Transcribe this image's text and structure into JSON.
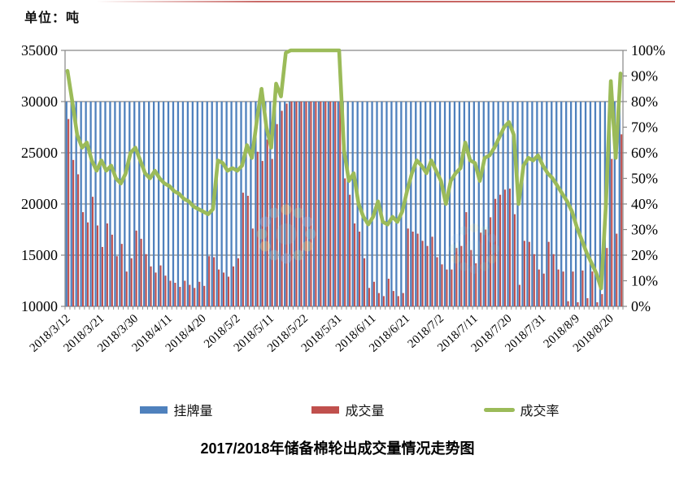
{
  "page": {
    "unit_label": "单位：吨",
    "top_line_color": "#c0504d",
    "background": "#ffffff"
  },
  "legend": {
    "items": [
      {
        "label": "挂牌量",
        "color": "#4f81bd",
        "marker": "bar"
      },
      {
        "label": "成交量",
        "color": "#c0504d",
        "marker": "bar"
      },
      {
        "label": "成交率",
        "color": "#9bbb59",
        "marker": "line"
      }
    ]
  },
  "watermark": {
    "colors": [
      "#8fd4e0",
      "#f2dd88",
      "#a8d9b8",
      "#9fc7ee"
    ]
  },
  "chart_data": {
    "type": "combo",
    "title": "2017/2018年储备棉轮出成交量情况走势图",
    "grid": true,
    "legend_position": "bottom",
    "x_tick_every": 7,
    "x_tick_labels": [
      "2018/3/12",
      "2018/3/21",
      "2018/3/30",
      "2018/4/11",
      "2018/4/20",
      "2018/5/2",
      "2018/5/11",
      "2018/5/22",
      "2018/5/31",
      "2018/6/11",
      "2018/6/21",
      "2018/7/2",
      "2018/7/11",
      "2018/7/20",
      "2018/7/31",
      "2018/8/9",
      "2018/8/20"
    ],
    "left_axis": {
      "title": "单位：吨",
      "min": 10000,
      "max": 35000,
      "step": 5000,
      "tick_labels": [
        "35000",
        "30000",
        "25000",
        "20000",
        "15000",
        "10000"
      ]
    },
    "right_axis": {
      "min": 0,
      "max": 100,
      "step": 10,
      "tick_labels": [
        "100%",
        "90%",
        "80%",
        "70%",
        "60%",
        "50%",
        "40%",
        "30%",
        "20%",
        "10%",
        "0%"
      ]
    },
    "categories": [
      "2018/3/12",
      "2018/3/13",
      "2018/3/14",
      "2018/3/15",
      "2018/3/16",
      "2018/3/19",
      "2018/3/20",
      "2018/3/21",
      "2018/3/22",
      "2018/3/23",
      "2018/3/26",
      "2018/3/27",
      "2018/3/28",
      "2018/3/29",
      "2018/3/30",
      "2018/4/2",
      "2018/4/3",
      "2018/4/4",
      "2018/4/8",
      "2018/4/9",
      "2018/4/10",
      "2018/4/11",
      "2018/4/12",
      "2018/4/13",
      "2018/4/16",
      "2018/4/17",
      "2018/4/18",
      "2018/4/19",
      "2018/4/20",
      "2018/4/23",
      "2018/4/24",
      "2018/4/25",
      "2018/4/26",
      "2018/4/27",
      "2018/4/28",
      "2018/5/2",
      "2018/5/3",
      "2018/5/4",
      "2018/5/7",
      "2018/5/8",
      "2018/5/9",
      "2018/5/10",
      "2018/5/11",
      "2018/5/14",
      "2018/5/15",
      "2018/5/16",
      "2018/5/17",
      "2018/5/18",
      "2018/5/21",
      "2018/5/22",
      "2018/5/23",
      "2018/5/24",
      "2018/5/25",
      "2018/5/28",
      "2018/5/29",
      "2018/5/30",
      "2018/5/31",
      "2018/6/1",
      "2018/6/4",
      "2018/6/5",
      "2018/6/6",
      "2018/6/7",
      "2018/6/8",
      "2018/6/11",
      "2018/6/12",
      "2018/6/13",
      "2018/6/14",
      "2018/6/15",
      "2018/6/19",
      "2018/6/20",
      "2018/6/21",
      "2018/6/22",
      "2018/6/25",
      "2018/6/26",
      "2018/6/27",
      "2018/6/28",
      "2018/6/29",
      "2018/7/2",
      "2018/7/3",
      "2018/7/4",
      "2018/7/5",
      "2018/7/6",
      "2018/7/9",
      "2018/7/10",
      "2018/7/11",
      "2018/7/12",
      "2018/7/13",
      "2018/7/16",
      "2018/7/17",
      "2018/7/18",
      "2018/7/19",
      "2018/7/20",
      "2018/7/23",
      "2018/7/24",
      "2018/7/25",
      "2018/7/26",
      "2018/7/27",
      "2018/7/30",
      "2018/7/31",
      "2018/8/1",
      "2018/8/2",
      "2018/8/3",
      "2018/8/6",
      "2018/8/7",
      "2018/8/8",
      "2018/8/9",
      "2018/8/10",
      "2018/8/13",
      "2018/8/14",
      "2018/8/15",
      "2018/8/16",
      "2018/8/17",
      "2018/8/20",
      "2018/8/21",
      "2018/8/22"
    ],
    "series": [
      {
        "name": "挂牌量",
        "type": "bar",
        "axis": "left",
        "color": "#4f81bd",
        "values": [
          30000,
          30000,
          30000,
          30000,
          30000,
          30000,
          30000,
          30000,
          30000,
          30000,
          30000,
          30000,
          30000,
          30000,
          30000,
          30000,
          30000,
          30000,
          30000,
          30000,
          30000,
          30000,
          30000,
          30000,
          30000,
          30000,
          30000,
          30000,
          30000,
          30000,
          30000,
          30000,
          30000,
          30000,
          30000,
          30000,
          30000,
          30000,
          30000,
          30000,
          30000,
          30000,
          30000,
          30000,
          30000,
          30000,
          30000,
          30000,
          30000,
          30000,
          30000,
          30000,
          30000,
          30000,
          30000,
          30000,
          30000,
          30000,
          30000,
          30000,
          30000,
          30000,
          30000,
          30000,
          30000,
          30000,
          30000,
          30000,
          30000,
          30000,
          30000,
          30000,
          30000,
          30000,
          30000,
          30000,
          30000,
          30000,
          30000,
          30000,
          30000,
          30000,
          30000,
          30000,
          30000,
          30000,
          30000,
          30000,
          30000,
          30000,
          30000,
          30000,
          30000,
          30000,
          30000,
          30000,
          30000,
          30000,
          30000,
          30000,
          30000,
          30000,
          30000,
          30000,
          30000,
          30000,
          30000,
          30000,
          30000,
          30000,
          30000,
          30000,
          30000,
          30000,
          30000
        ]
      },
      {
        "name": "成交量",
        "type": "bar",
        "axis": "left",
        "color": "#c0504d",
        "values": [
          28300,
          24300,
          22900,
          19200,
          18200,
          20700,
          17900,
          15800,
          18100,
          17000,
          14900,
          16100,
          13400,
          14700,
          17400,
          16600,
          15100,
          13900,
          13300,
          14000,
          13000,
          12500,
          12300,
          11900,
          12500,
          12100,
          11800,
          12400,
          12000,
          14900,
          14800,
          13600,
          13300,
          12900,
          13900,
          14700,
          21100,
          20800,
          17600,
          25100,
          24200,
          26300,
          24400,
          27800,
          29100,
          29800,
          30000,
          30000,
          30000,
          30000,
          30000,
          30000,
          30000,
          30000,
          30000,
          30000,
          30000,
          22500,
          20900,
          18100,
          17300,
          14700,
          11800,
          12400,
          11300,
          11000,
          12700,
          11500,
          11000,
          11300,
          17600,
          17300,
          17100,
          16400,
          15900,
          16800,
          14800,
          14100,
          13600,
          13600,
          15700,
          15900,
          19200,
          15500,
          14200,
          17200,
          17500,
          18700,
          20500,
          20900,
          21400,
          21500,
          19000,
          12100,
          16400,
          16300,
          15100,
          13600,
          13200,
          16300,
          15100,
          13600,
          13400,
          10500,
          13400,
          10400,
          13500,
          10800,
          13400,
          10400,
          11200,
          15700,
          24400,
          17100,
          26800
        ]
      },
      {
        "name": "成交率",
        "type": "line",
        "axis": "right",
        "unit": "%",
        "color": "#9bbb59",
        "values": [
          92,
          80,
          67,
          62,
          64,
          57,
          53,
          57,
          53,
          55,
          50,
          48,
          52,
          60,
          62,
          57,
          52,
          50,
          53,
          50,
          48,
          47,
          45,
          44,
          42,
          41,
          39,
          38,
          37,
          36,
          38,
          57,
          56,
          53,
          54,
          53,
          55,
          63,
          58,
          72,
          85,
          70,
          62,
          87,
          82,
          99,
          100,
          100,
          100,
          100,
          100,
          100,
          100,
          100,
          100,
          100,
          100,
          61,
          49,
          52,
          40,
          35,
          32,
          35,
          41,
          33,
          32,
          35,
          33,
          37,
          45,
          52,
          57,
          55,
          52,
          57,
          53,
          49,
          40,
          49,
          52,
          54,
          64,
          57,
          56,
          49,
          58,
          59,
          62,
          66,
          70,
          72,
          67,
          40,
          55,
          58,
          57,
          59,
          55,
          52,
          50,
          47,
          44,
          41,
          37,
          31,
          26,
          21,
          17,
          13,
          7,
          40,
          88,
          58,
          91
        ]
      }
    ]
  }
}
